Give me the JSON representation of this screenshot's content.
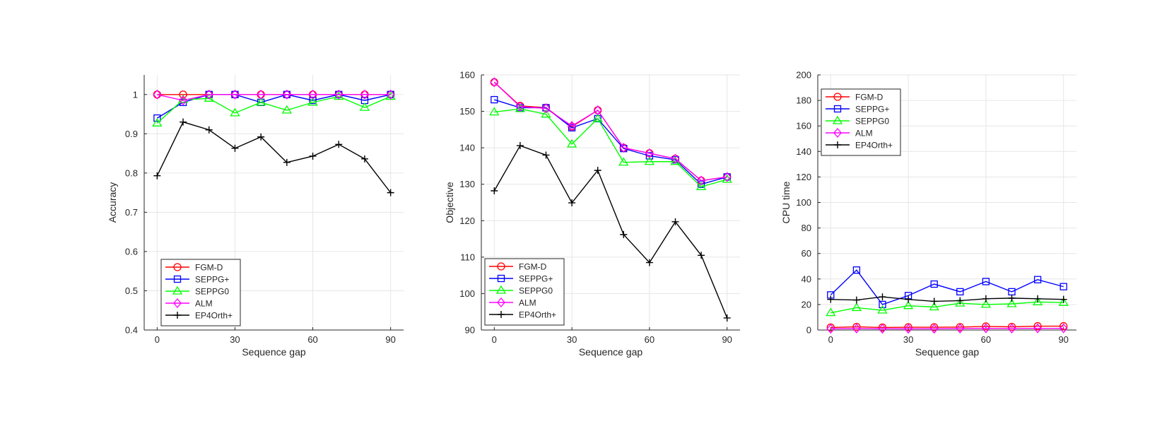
{
  "figure": {
    "panels": 3
  },
  "colors": {
    "FGM-D": "#ff0000",
    "SEPPG+": "#0000ff",
    "SEPPG0": "#00ff00",
    "ALM": "#ff00ff",
    "EP4Orth+": "#000000",
    "grid": "#e6e6e6",
    "axis": "#262626"
  },
  "markers": {
    "FGM-D": "circle",
    "SEPPG+": "square",
    "SEPPG0": "triangle",
    "ALM": "diamond",
    "EP4Orth+": "plus"
  },
  "chart_data": [
    {
      "type": "line",
      "title": "",
      "xlabel": "Sequence gap",
      "ylabel": "Accuracy",
      "xlim": [
        -5,
        95
      ],
      "ylim": [
        0.4,
        1.05
      ],
      "xticks": [
        0,
        30,
        60,
        90
      ],
      "xtick_labels": [
        "0",
        "30",
        "60",
        "90"
      ],
      "yticks": [
        0.4,
        0.5,
        0.6,
        0.7,
        0.8,
        0.9,
        1.0
      ],
      "ytick_labels": [
        "0.4",
        "0.5",
        "0.6",
        "0.7",
        "0.8",
        "0.9",
        "1"
      ],
      "grid": true,
      "legend_position": "bottom-left",
      "x": [
        0,
        10,
        20,
        30,
        40,
        50,
        60,
        70,
        80,
        90
      ],
      "series": [
        {
          "name": "FGM-D",
          "values": [
            1.0,
            1.0,
            1.0,
            1.0,
            1.0,
            1.0,
            1.0,
            1.0,
            1.0,
            1.0
          ]
        },
        {
          "name": "SEPPG+",
          "values": [
            0.94,
            0.98,
            1.0,
            1.0,
            0.98,
            1.0,
            0.985,
            1.0,
            0.985,
            1.0
          ]
        },
        {
          "name": "SEPPG0",
          "values": [
            0.927,
            0.987,
            0.99,
            0.953,
            0.98,
            0.96,
            0.98,
            0.995,
            0.967,
            0.995
          ]
        },
        {
          "name": "ALM",
          "values": [
            1.0,
            0.985,
            1.0,
            1.0,
            1.0,
            1.0,
            1.0,
            1.0,
            1.0,
            1.0
          ]
        },
        {
          "name": "EP4Orth+",
          "values": [
            0.793,
            0.93,
            0.91,
            0.863,
            0.892,
            0.827,
            0.843,
            0.873,
            0.836,
            0.75
          ]
        }
      ]
    },
    {
      "type": "line",
      "title": "",
      "xlabel": "Sequence gap",
      "ylabel": "Objective",
      "xlim": [
        -5,
        95
      ],
      "ylim": [
        90,
        160
      ],
      "xticks": [
        0,
        30,
        60,
        90
      ],
      "xtick_labels": [
        "0",
        "30",
        "60",
        "90"
      ],
      "yticks": [
        90,
        100,
        110,
        120,
        130,
        140,
        150,
        160
      ],
      "ytick_labels": [
        "90",
        "100",
        "110",
        "120",
        "130",
        "140",
        "150",
        "160"
      ],
      "grid": true,
      "legend_position": "bottom-left",
      "x": [
        0,
        10,
        20,
        30,
        40,
        50,
        60,
        70,
        80,
        90
      ],
      "series": [
        {
          "name": "FGM-D",
          "values": [
            158,
            151.5,
            151,
            145.8,
            150.3,
            140,
            138.5,
            137,
            131,
            132
          ]
        },
        {
          "name": "SEPPG+",
          "values": [
            153.2,
            151,
            151,
            145.5,
            148,
            139.8,
            137.8,
            136.7,
            130,
            132
          ]
        },
        {
          "name": "SEPPG0",
          "values": [
            149.8,
            150.7,
            149.2,
            141,
            148,
            136,
            136.2,
            136.2,
            129.3,
            131.3
          ]
        },
        {
          "name": "ALM",
          "values": [
            158,
            151.3,
            150.8,
            146,
            150.3,
            140,
            138.5,
            137,
            131,
            132
          ]
        },
        {
          "name": "EP4Orth+",
          "values": [
            128.2,
            140.6,
            138,
            124.9,
            133.8,
            116.2,
            108.5,
            119.7,
            110.5,
            93.3
          ]
        }
      ]
    },
    {
      "type": "line",
      "title": "",
      "xlabel": "Sequence gap",
      "ylabel": "CPU time",
      "xlim": [
        -5,
        95
      ],
      "ylim": [
        0,
        200
      ],
      "xticks": [
        0,
        30,
        60,
        90
      ],
      "xtick_labels": [
        "0",
        "30",
        "60",
        "90"
      ],
      "yticks": [
        0,
        20,
        40,
        60,
        80,
        100,
        120,
        140,
        160,
        180,
        200
      ],
      "ytick_labels": [
        "0",
        "20",
        "40",
        "60",
        "80",
        "100",
        "120",
        "140",
        "160",
        "180",
        "200"
      ],
      "grid": true,
      "legend_position": "top-left",
      "x": [
        0,
        10,
        20,
        30,
        40,
        50,
        60,
        70,
        80,
        90
      ],
      "series": [
        {
          "name": "FGM-D",
          "values": [
            2,
            2.5,
            2,
            2.2,
            2.2,
            2.3,
            2.8,
            2.5,
            3,
            3
          ]
        },
        {
          "name": "SEPPG+",
          "values": [
            27.5,
            47,
            20,
            27,
            36,
            30,
            38,
            30,
            39.5,
            34
          ]
        },
        {
          "name": "SEPPG0",
          "values": [
            13.5,
            17.5,
            15.5,
            19,
            18,
            21,
            20,
            20.5,
            22,
            21.5
          ]
        },
        {
          "name": "ALM",
          "values": [
            1,
            1.2,
            1,
            1,
            1,
            1.2,
            1.3,
            1.2,
            1.3,
            1.3
          ]
        },
        {
          "name": "EP4Orth+",
          "values": [
            24,
            23.5,
            26,
            24,
            22.5,
            23,
            24.5,
            25,
            24.5,
            24
          ]
        }
      ]
    }
  ]
}
